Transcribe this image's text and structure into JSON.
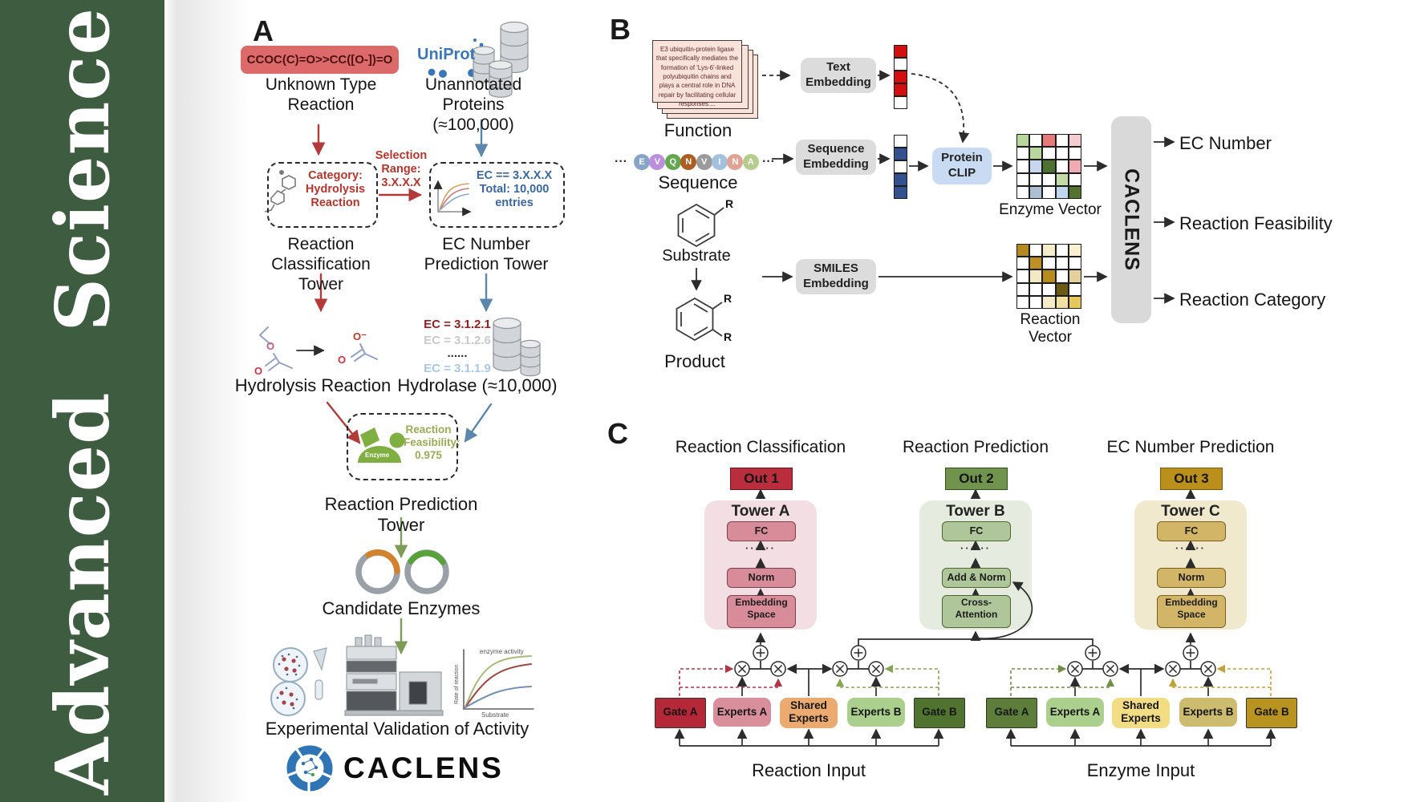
{
  "journal": {
    "title": "Advanced Science",
    "sidebar_green": "#3e5c40"
  },
  "panelA": {
    "label": "A",
    "smiles": "CCOC(C)=O>>CC([O-])=O",
    "unknown_reaction": "Unknown Type\nReaction",
    "uniprot": "UniProt",
    "unannotated": "Unannotated\nProteins (≈100,000)",
    "selection": "Selection\nRange:\n3.X.X.X",
    "box1_text": "Category:\nHydrolysis\nReaction",
    "box2_text": "EC == 3.X.X.X\nTotal: 10,000\nentries",
    "classification_tower": "Reaction\nClassification Tower",
    "ec_tower": "EC Number\nPrediction Tower",
    "ec_list": [
      {
        "t": "EC = 3.1.2.1",
        "c": "#9b1b1e"
      },
      {
        "t": "EC = 3.1.2.6",
        "c": "#c9c9c9"
      },
      {
        "t": "......",
        "c": "#2a2a2a"
      },
      {
        "t": "EC = 3.1.1.9",
        "c": "#a9c8e6"
      }
    ],
    "hydrolysis": "Hydrolysis Reaction",
    "hydrolase": "Hydrolase (≈10,000)",
    "feasibility": "Reaction\nFeasibility:\n0.975",
    "enzyme_icon_label": "Enzyme",
    "prediction_tower": "Reaction Prediction Tower",
    "candidate": "Candidate Enzymes",
    "graph": {
      "activity": "enzyme activity",
      "rate": "Rate of reaction",
      "substrate": "Substrate"
    },
    "validation": "Experimental Validation of Activity",
    "brand": "CACLENS",
    "o_ester": "O",
    "o_carbonyl": "O",
    "o_minus": "O⁻"
  },
  "panelB": {
    "label": "B",
    "function_card": "E3 ubiquitin-protein ligase\nthat specifically mediates the\nformation of 'Lys-6'-linked\npolyubiquitin chains and\nplays a central role in DNA\nrepair by facilitating cellular\nresponses....",
    "function": "Function",
    "ellipsis": "···",
    "residues": [
      {
        "t": "E",
        "c": "#87a3c8"
      },
      {
        "t": "V",
        "c": "#bb8fe0"
      },
      {
        "t": "Q",
        "c": "#63a74f"
      },
      {
        "t": "N",
        "c": "#ad5c22"
      },
      {
        "t": "V",
        "c": "#9b9b9b"
      },
      {
        "t": "I",
        "c": "#a3c0dc"
      },
      {
        "t": "N",
        "c": "#e0a294"
      },
      {
        "t": "A",
        "c": "#b5cc8d"
      }
    ],
    "sequence": "Sequence",
    "substrate": "Substrate",
    "product": "Product",
    "r_label": "R",
    "text_embedding": "Text\nEmbedding",
    "sequence_embedding": "Sequence\nEmbedding",
    "smiles_embedding": "SMILES\nEmbedding",
    "protein_clip": "Protein\nCLIP",
    "text_vector_cells": [
      "#d40f0f",
      "#ffffff",
      "#d40f0f",
      "#d40f0f",
      "#ffffff"
    ],
    "seq_vector_cells": [
      "#ffffff",
      "#33518f",
      "#ffffff",
      "#33518f",
      "#33518f"
    ],
    "enzyme_vector_label": "Enzyme Vector",
    "reaction_vector_label": "Reaction Vector",
    "enzyme_vector_cells": [
      "#b7d79c",
      "#ffffff",
      "#e47a7a",
      "#ffffff",
      "#f4cdd1",
      "#ffffff",
      "#b7d79c",
      "#ffffff",
      "#ffffff",
      "#ffffff",
      "#ffffff",
      "#c7d8ee",
      "#4e7030",
      "#ffffff",
      "#efabb1",
      "#ffffff",
      "#ffffff",
      "#ffffff",
      "#c3dba4",
      "#ffffff",
      "#ffffff",
      "#adbfd2",
      "#ffffff",
      "#bfd8ee",
      "#55712e"
    ],
    "reaction_vector_cells": [
      "#b5891d",
      "#ffffff",
      "#f5ecca",
      "#ffffff",
      "#f8f0cf",
      "#ffffff",
      "#bd9026",
      "#ffffff",
      "#ffffff",
      "#ffffff",
      "#ffffff",
      "#f3e9c4",
      "#b78b20",
      "#ffffff",
      "#e4d09b",
      "#ffffff",
      "#ffffff",
      "#ffffff",
      "#6a5a16",
      "#ffffff",
      "#ffffff",
      "#ffffff",
      "#f5ecca",
      "#f0e0a2",
      "#e6c75c"
    ],
    "caclens": "CACLENS",
    "caclens_bg": "#d9d9d9",
    "clip_bg": "#c8dbf2",
    "outputs": [
      "EC Number",
      "Reaction Feasibility",
      "Reaction Category"
    ]
  },
  "panelC": {
    "label": "C",
    "headings": [
      "Reaction Classification",
      "Reaction Prediction",
      "EC Number Prediction"
    ],
    "towers": [
      {
        "name": "Tower A",
        "out": "Out 1",
        "out_bg": "#ba2d3d",
        "panel_bg": "#f2dee3",
        "box_bg": "#d88c99",
        "fc": "FC",
        "dots": "······",
        "mid": "Norm",
        "bottom": "Embedding\nSpace"
      },
      {
        "name": "Tower B",
        "out": "Out 2",
        "out_bg": "#70944d",
        "panel_bg": "#e5ecdf",
        "box_bg": "#afc69a",
        "fc": "FC",
        "dots": "······",
        "mid": "Add & Norm",
        "bottom": "Cross-\nAttention"
      },
      {
        "name": "Tower C",
        "out": "Out 3",
        "out_bg": "#bb8f1c",
        "panel_bg": "#f0e9ce",
        "box_bg": "#d2b566",
        "fc": "FC",
        "dots": "······",
        "mid": "Norm",
        "bottom": "Embedding\nSpace"
      }
    ],
    "reaction_boxes": [
      {
        "t": "Gate A",
        "bg": "#b42838"
      },
      {
        "t": "Experts A",
        "bg": "#d98f9b"
      },
      {
        "t": "Shared\nExperts",
        "bg": "#eaaa70"
      },
      {
        "t": "Experts B",
        "bg": "#abd08d"
      },
      {
        "t": "Gate B",
        "bg": "#50742f"
      }
    ],
    "enzyme_boxes": [
      {
        "t": "Gate A",
        "bg": "#5d7d3b"
      },
      {
        "t": "Experts A",
        "bg": "#abd08d"
      },
      {
        "t": "Shared\nExperts",
        "bg": "#f2dd85"
      },
      {
        "t": "Experts B",
        "bg": "#cdbb70"
      },
      {
        "t": "Gate B",
        "bg": "#b8931f"
      }
    ],
    "reaction_input": "Reaction Input",
    "enzyme_input": "Enzyme Input"
  }
}
